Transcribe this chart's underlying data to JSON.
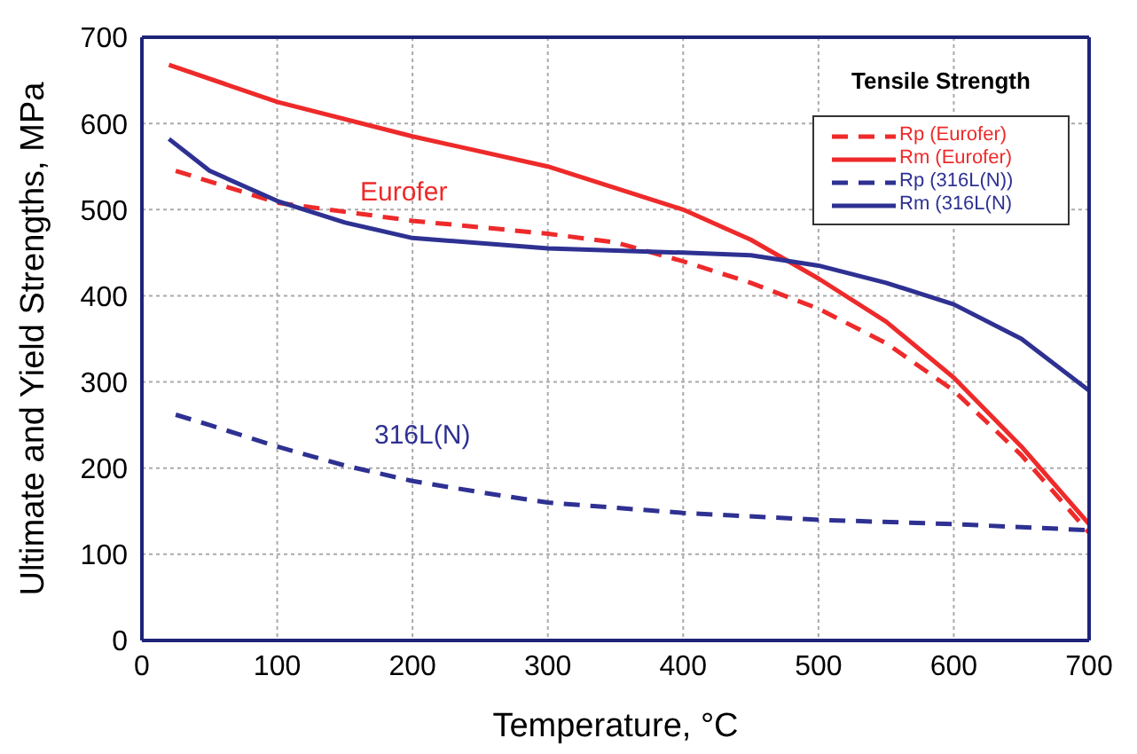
{
  "chart_data": {
    "type": "line",
    "xlabel": "Temperature, °C",
    "ylabel": "Ultimate and Yield Strengths, MPa",
    "legend_title": "Tensile Strength",
    "xlim": [
      0,
      700
    ],
    "xticks": [
      0,
      100,
      200,
      300,
      400,
      500,
      600,
      700
    ],
    "ylim": [
      0,
      700
    ],
    "yticks": [
      0,
      100,
      200,
      300,
      400,
      500,
      600,
      700
    ],
    "grid": true,
    "legend": "top right",
    "marker": "none",
    "series": [
      {
        "name": "Rp (Eurofer)",
        "color": "#ee2a2a",
        "line_style": "dashed",
        "x": [
          25,
          100,
          200,
          300,
          350,
          400,
          450,
          500,
          550,
          600,
          650,
          700
        ],
        "values": [
          545,
          508,
          487,
          472,
          462,
          440,
          415,
          385,
          345,
          290,
          215,
          125
        ]
      },
      {
        "name": "Rm (Eurofer)",
        "color": "#ee2a2a",
        "line_style": "solid",
        "x": [
          20,
          100,
          200,
          300,
          400,
          450,
          500,
          550,
          600,
          650,
          700
        ],
        "values": [
          668,
          625,
          585,
          550,
          500,
          465,
          420,
          370,
          305,
          225,
          135
        ]
      },
      {
        "name": "Rp (316L(N))",
        "color": "#2e3192",
        "line_style": "dashed",
        "x": [
          25,
          50,
          100,
          150,
          200,
          250,
          300,
          400,
          500,
          600,
          700
        ],
        "values": [
          262,
          250,
          225,
          203,
          185,
          172,
          160,
          148,
          140,
          135,
          128
        ]
      },
      {
        "name": "Rm (316L(N)",
        "color": "#2e3192",
        "line_style": "solid",
        "x": [
          20,
          50,
          100,
          150,
          200,
          300,
          400,
          450,
          500,
          550,
          600,
          650,
          700
        ],
        "values": [
          582,
          545,
          510,
          485,
          467,
          455,
          450,
          447,
          435,
          415,
          390,
          350,
          290
        ]
      }
    ],
    "annotations": [
      "Eurofer",
      "316L(N)"
    ]
  }
}
